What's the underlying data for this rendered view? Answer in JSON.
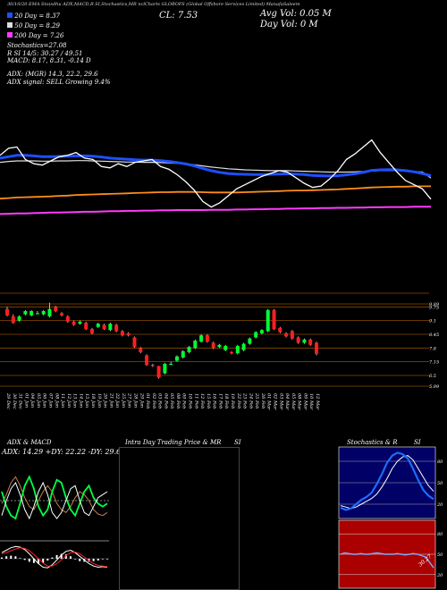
{
  "header": {
    "line1": "30/10/20 EMA Sto(sdhu ADX,MACD,R          SI,Stochastics,MR          nclCharts GLOBOFS          (Global Offshore Services Limited) ManafaSaleem",
    "cl_label": "CL: 7.53",
    "avg_vol": "Avg Vol: 0.05 M",
    "day_vol": "Day Vol: 0  M",
    "ema20": "20  Day = 8.37",
    "ema50": "50  Day = 8.29",
    "ema200": "200  Day = 7.26",
    "stochastics": "Stochastics=27.08",
    "rsi": "R                   SI 14/5: 30.27 / 49.51",
    "macd": "MACD: 8.17, 8.31, -0.14  D",
    "adx": "ADX:                      (MGR) 14.3, 22.2, 29.6",
    "adx_signal": "ADX  signal: SELL Growing 9.4%"
  },
  "colors": {
    "ema20": "#1e4fff",
    "ema50": "#dddddd",
    "ema100": "#ff8c1a",
    "ema200": "#ff3bff",
    "price": "#ffffff",
    "up_candle": "#00ff33",
    "down_candle": "#ff1f1f",
    "grid": "#8b4a00",
    "stoch_bg": "#000066",
    "rsi_bg": "#aa0000"
  },
  "chart_data": [
    {
      "type": "line",
      "name": "price-and-ema",
      "x": [
        "29 Dec",
        "30 Dec",
        "31 Dec",
        "01 Jan",
        "04 Jan",
        "05 Jan",
        "06 Jan",
        "07 Jan",
        "08 Jan",
        "11 Jan",
        "12 Jan",
        "13 Jan",
        "14 Jan",
        "15 Jan",
        "18 Jan",
        "19 Jan",
        "20 Jan",
        "21 Jan",
        "22 Jan",
        "25 Jan",
        "27 Jan",
        "28 Jan",
        "29 Jan",
        "01 Feb",
        "02 Feb",
        "03 Feb",
        "04 Feb",
        "05 Feb",
        "08 Feb",
        "09 Feb",
        "10 Feb",
        "11 Feb",
        "12 Feb",
        "15 Feb",
        "16 Feb",
        "17 Feb",
        "18 Feb",
        "19 Feb",
        "22 Feb",
        "23 Feb",
        "24 Feb",
        "25 Feb",
        "26 Feb",
        "01 Mar",
        "02 Mar",
        "03 Mar",
        "04 Mar",
        "05 Mar",
        "08 Mar",
        "09 Mar",
        "10 Mar",
        "12 Mar"
      ],
      "series": [
        {
          "name": "price",
          "values": [
            9.1,
            9.35,
            9.4,
            8.95,
            8.8,
            8.75,
            8.9,
            9.05,
            9.1,
            9.2,
            9.0,
            8.95,
            8.7,
            8.65,
            8.8,
            8.7,
            8.85,
            8.9,
            8.95,
            8.7,
            8.6,
            8.4,
            8.15,
            7.85,
            7.45,
            7.25,
            7.4,
            7.65,
            7.9,
            8.05,
            8.2,
            8.35,
            8.45,
            8.55,
            8.5,
            8.3,
            8.1,
            7.95,
            8.0,
            8.25,
            8.55,
            8.95,
            9.15,
            9.4,
            9.65,
            9.2,
            8.85,
            8.5,
            8.2,
            8.05,
            7.9,
            7.53
          ]
        },
        {
          "name": "ema20",
          "values": [
            9.0,
            9.05,
            9.1,
            9.1,
            9.08,
            9.05,
            9.05,
            9.06,
            9.07,
            9.08,
            9.08,
            9.07,
            9.04,
            9.0,
            8.98,
            8.96,
            8.94,
            8.93,
            8.93,
            8.91,
            8.88,
            8.84,
            8.79,
            8.72,
            8.63,
            8.55,
            8.49,
            8.45,
            8.43,
            8.42,
            8.41,
            8.41,
            8.42,
            8.43,
            8.44,
            8.43,
            8.41,
            8.38,
            8.37,
            8.36,
            8.37,
            8.4,
            8.44,
            8.49,
            8.56,
            8.58,
            8.59,
            8.58,
            8.55,
            8.51,
            8.45,
            8.37
          ]
        },
        {
          "name": "ema50",
          "values": [
            8.85,
            8.88,
            8.9,
            8.9,
            8.9,
            8.89,
            8.89,
            8.9,
            8.9,
            8.91,
            8.91,
            8.9,
            8.89,
            8.88,
            8.87,
            8.86,
            8.86,
            8.85,
            8.85,
            8.84,
            8.83,
            8.81,
            8.79,
            8.76,
            8.72,
            8.68,
            8.65,
            8.62,
            8.6,
            8.58,
            8.57,
            8.56,
            8.55,
            8.55,
            8.55,
            8.54,
            8.53,
            8.52,
            8.51,
            8.5,
            8.5,
            8.5,
            8.51,
            8.52,
            8.54,
            8.55,
            8.55,
            8.55,
            8.54,
            8.52,
            8.5,
            8.29
          ]
        },
        {
          "name": "ema100",
          "values": [
            7.55,
            7.57,
            7.59,
            7.6,
            7.61,
            7.62,
            7.63,
            7.65,
            7.66,
            7.68,
            7.69,
            7.7,
            7.71,
            7.72,
            7.73,
            7.74,
            7.75,
            7.76,
            7.77,
            7.78,
            7.78,
            7.79,
            7.79,
            7.79,
            7.78,
            7.77,
            7.77,
            7.77,
            7.77,
            7.78,
            7.79,
            7.8,
            7.81,
            7.82,
            7.83,
            7.84,
            7.84,
            7.85,
            7.86,
            7.87,
            7.88,
            7.9,
            7.91,
            7.93,
            7.95,
            7.96,
            7.97,
            7.98,
            7.98,
            7.99,
            7.99,
            7.99
          ]
        },
        {
          "name": "ema200",
          "values": [
            7.0,
            7.01,
            7.02,
            7.02,
            7.03,
            7.04,
            7.05,
            7.05,
            7.06,
            7.07,
            7.08,
            7.08,
            7.09,
            7.1,
            7.1,
            7.11,
            7.11,
            7.12,
            7.12,
            7.13,
            7.13,
            7.14,
            7.14,
            7.14,
            7.14,
            7.15,
            7.15,
            7.15,
            7.16,
            7.16,
            7.17,
            7.17,
            7.18,
            7.18,
            7.19,
            7.19,
            7.2,
            7.2,
            7.21,
            7.21,
            7.22,
            7.22,
            7.23,
            7.23,
            7.24,
            7.24,
            7.25,
            7.25,
            7.25,
            7.26,
            7.26,
            7.26
          ]
        }
      ],
      "ylim": [
        6.5,
        10.5
      ]
    },
    {
      "type": "candlestick",
      "name": "price-candles",
      "tick_labels": [
        "9.89",
        "9.75",
        "9.1",
        "8.45",
        "7.8",
        "7.15",
        "6.5",
        "5.99"
      ],
      "ylim": [
        5.99,
        9.89
      ],
      "x": [
        "29 Dec",
        "30 Dec",
        "31 Dec",
        "01 Jan",
        "04 Jan",
        "05 Jan",
        "06 Jan",
        "07 Jan",
        "08 Jan",
        "11 Jan",
        "12 Jan",
        "13 Jan",
        "14 Jan",
        "15 Jan",
        "18 Jan",
        "19 Jan",
        "20 Jan",
        "21 Jan",
        "22 Jan",
        "25 Jan",
        "27 Jan",
        "28 Jan",
        "29 Jan",
        "01 Feb",
        "02 Feb",
        "03 Feb",
        "04 Feb",
        "05 Feb",
        "08 Feb",
        "09 Feb",
        "10 Feb",
        "11 Feb",
        "12 Feb",
        "15 Feb",
        "16 Feb",
        "17 Feb",
        "18 Feb",
        "19 Feb",
        "22 Feb",
        "23 Feb",
        "24 Feb",
        "25 Feb",
        "26 Feb",
        "01 Mar",
        "02 Mar",
        "03 Mar",
        "04 Mar",
        "05 Mar",
        "08 Mar",
        "09 Mar",
        "10 Mar",
        "12 Mar"
      ],
      "open": [
        9.65,
        9.3,
        9.1,
        9.4,
        9.35,
        9.45,
        9.4,
        9.3,
        9.75,
        9.45,
        9.3,
        9.05,
        8.95,
        9.0,
        8.7,
        8.8,
        8.9,
        8.65,
        8.9,
        8.6,
        8.5,
        8.3,
        7.8,
        7.45,
        7.0,
        6.95,
        6.6,
        7.05,
        7.2,
        7.35,
        7.6,
        7.8,
        8.1,
        8.4,
        8.05,
        7.85,
        7.7,
        7.6,
        7.55,
        7.7,
        8.0,
        8.3,
        8.5,
        8.6,
        9.6,
        8.75,
        8.5,
        8.6,
        8.3,
        8.05,
        8.2,
        8.05
      ],
      "close": [
        9.35,
        9.0,
        9.3,
        9.55,
        9.55,
        9.45,
        9.55,
        9.65,
        9.55,
        9.35,
        9.05,
        8.9,
        9.05,
        8.7,
        8.5,
        8.95,
        8.7,
        8.95,
        8.6,
        8.4,
        8.4,
        7.85,
        7.6,
        7.0,
        6.95,
        6.4,
        7.05,
        7.05,
        7.4,
        7.65,
        7.85,
        8.15,
        8.4,
        8.1,
        7.8,
        7.95,
        7.9,
        7.55,
        7.9,
        8.0,
        8.25,
        8.55,
        8.65,
        9.6,
        8.7,
        8.55,
        8.35,
        8.25,
        8.05,
        8.2,
        7.95,
        7.53
      ],
      "high": [
        9.75,
        9.4,
        9.35,
        9.6,
        9.6,
        9.55,
        9.6,
        9.95,
        9.8,
        9.5,
        9.35,
        9.1,
        9.1,
        9.05,
        8.75,
        9.0,
        8.95,
        9.0,
        8.95,
        8.65,
        8.55,
        8.35,
        7.85,
        7.5,
        7.05,
        6.95,
        7.1,
        7.15,
        7.45,
        7.7,
        7.9,
        8.2,
        8.45,
        8.45,
        8.1,
        8.0,
        7.95,
        7.65,
        7.95,
        8.05,
        8.3,
        8.6,
        8.7,
        9.65,
        9.65,
        8.8,
        8.55,
        8.65,
        8.35,
        8.25,
        8.25,
        8.1
      ],
      "low": [
        9.3,
        8.95,
        9.05,
        9.35,
        9.3,
        9.4,
        9.35,
        9.25,
        9.5,
        9.3,
        9.0,
        8.85,
        8.9,
        8.65,
        8.45,
        8.75,
        8.65,
        8.6,
        8.55,
        8.35,
        8.35,
        7.8,
        7.55,
        6.95,
        6.9,
        6.35,
        6.55,
        7.0,
        7.15,
        7.3,
        7.55,
        7.75,
        8.05,
        8.05,
        7.75,
        7.8,
        7.65,
        7.5,
        7.5,
        7.65,
        7.95,
        8.25,
        8.45,
        8.55,
        8.65,
        8.5,
        8.3,
        8.2,
        8.0,
        8.0,
        7.9,
        7.45
      ]
    },
    {
      "type": "line",
      "name": "adx-macd",
      "title": "ADX  & MACD",
      "legend": "ADX: 14.29 +DY: 22.22  -DY: 29.63",
      "series": [
        {
          "name": "ADX",
          "values": [
            22,
            28,
            36,
            40,
            34,
            26,
            20,
            18,
            24,
            30,
            34,
            30,
            22,
            18,
            16,
            20,
            26,
            30,
            28,
            24,
            18,
            15,
            14,
            16
          ]
        },
        {
          "name": "+DY",
          "values": [
            30,
            20,
            14,
            12,
            22,
            34,
            40,
            32,
            20,
            14,
            18,
            30,
            38,
            36,
            26,
            18,
            14,
            22,
            30,
            34,
            26,
            22,
            20,
            22
          ]
        },
        {
          "name": "-DY",
          "values": [
            14,
            24,
            32,
            36,
            28,
            18,
            12,
            20,
            30,
            36,
            28,
            16,
            12,
            16,
            24,
            32,
            34,
            24,
            16,
            14,
            20,
            26,
            28,
            30
          ]
        }
      ],
      "macd": {
        "macd": [
          0.1,
          0.14,
          0.18,
          0.2,
          0.19,
          0.15,
          0.08,
          0.0,
          -0.08,
          -0.14,
          -0.15,
          -0.1,
          -0.02,
          0.06,
          0.12,
          0.14,
          0.1,
          0.04,
          -0.02,
          -0.08,
          -0.12,
          -0.14,
          -0.13,
          -0.14
        ],
        "signal": [
          0.08,
          0.1,
          0.13,
          0.16,
          0.18,
          0.17,
          0.13,
          0.07,
          0.0,
          -0.07,
          -0.12,
          -0.12,
          -0.08,
          -0.02,
          0.05,
          0.1,
          0.11,
          0.08,
          0.03,
          -0.03,
          -0.08,
          -0.11,
          -0.12,
          -0.13
        ]
      }
    },
    {
      "type": "line",
      "name": "stochastics",
      "title": "Stochastics & R",
      "title_right": "SI",
      "tick_labels": [
        "80",
        "50",
        "20"
      ],
      "ylim": [
        0,
        100
      ],
      "series": [
        {
          "name": "%K",
          "values": [
            15,
            12,
            14,
            20,
            26,
            30,
            36,
            48,
            62,
            78,
            88,
            92,
            90,
            84,
            70,
            54,
            40,
            32,
            27
          ]
        },
        {
          "name": "%D",
          "values": [
            18,
            16,
            14,
            16,
            20,
            24,
            28,
            34,
            44,
            56,
            70,
            80,
            86,
            88,
            82,
            70,
            58,
            46,
            38
          ]
        }
      ]
    },
    {
      "type": "line",
      "name": "rsi",
      "tick_labels": [
        "80",
        "50",
        "20"
      ],
      "ylim": [
        0,
        100
      ],
      "label": "30.27",
      "series": [
        {
          "name": "RSI",
          "values": [
            50,
            52,
            51,
            50,
            50,
            51,
            50,
            50,
            51,
            52,
            51,
            50,
            50,
            50,
            51,
            50,
            49,
            50,
            51,
            50,
            48,
            46,
            38,
            30
          ]
        }
      ]
    }
  ],
  "intraday": {
    "title": "Intra Day Trading Price  & MR",
    "title_right": "SI"
  }
}
